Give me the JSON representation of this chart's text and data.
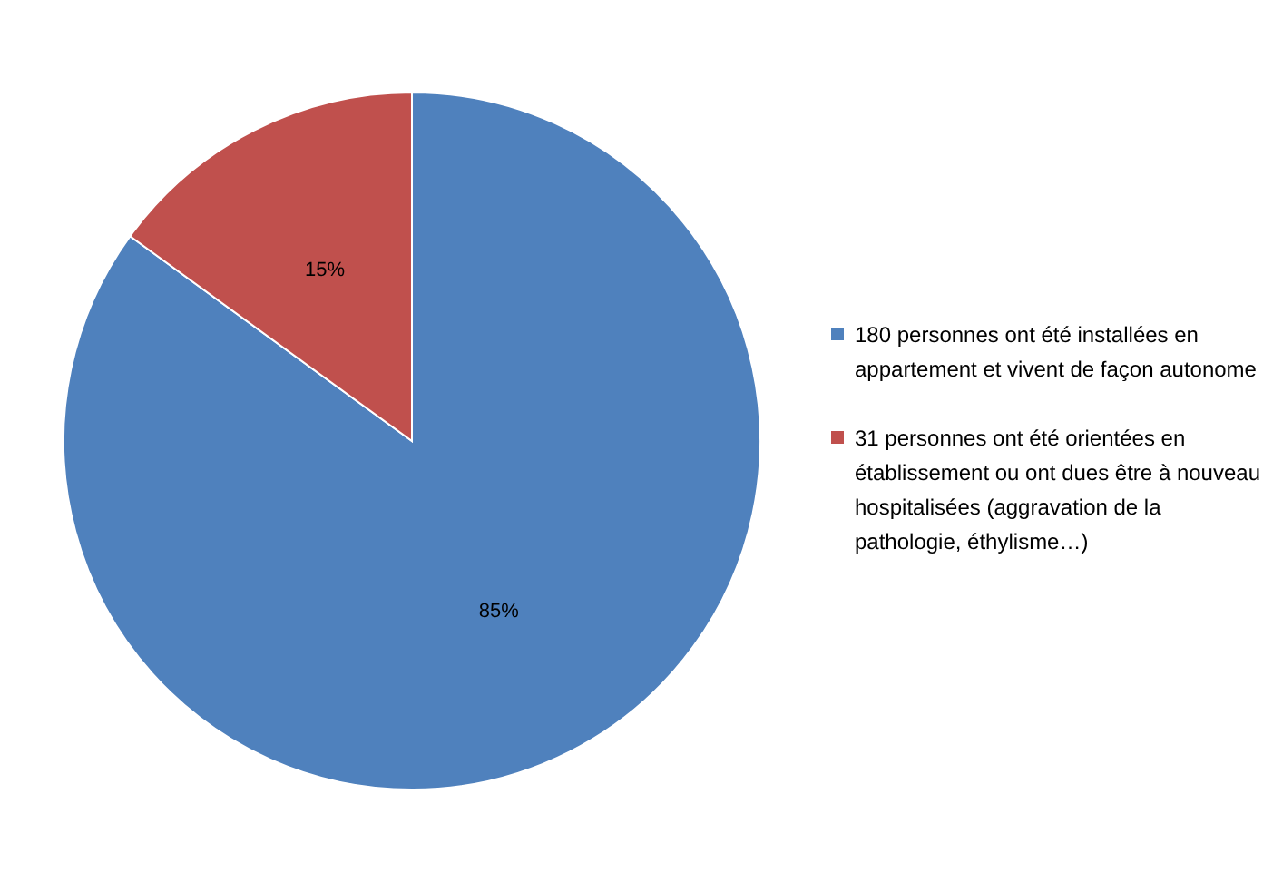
{
  "chart_data": {
    "type": "pie",
    "categories": [
      "180 personnes ont été installées en appartement et vivent de façon autonome",
      "31 personnes  ont été orientées en établissement ou ont dues être à nouveau hospitalisées (aggravation de la pathologie, éthylisme…)"
    ],
    "values": [
      85,
      15
    ],
    "colors": [
      "#4f81bd",
      "#c0504d"
    ],
    "value_labels": [
      "85%",
      "15%"
    ],
    "legend": "right"
  }
}
